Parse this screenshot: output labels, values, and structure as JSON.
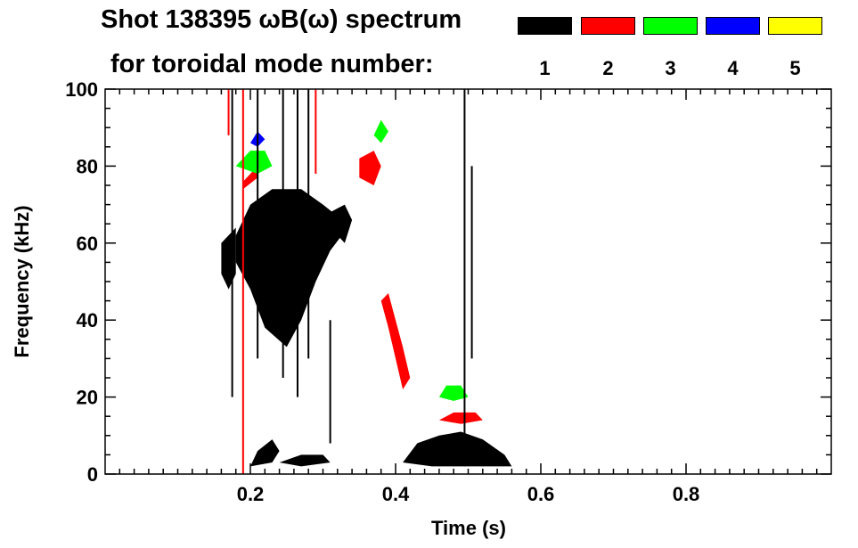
{
  "chart_data": {
    "type": "heatmap",
    "title_line1": "Shot 138395 ωB(ω) spectrum",
    "title_line2": "for toroidal mode number:",
    "xlabel": "Time (s)",
    "ylabel": "Frequency (kHz)",
    "xlim": [
      0.0,
      1.0
    ],
    "ylim": [
      0,
      100
    ],
    "xticks": [
      0.2,
      0.4,
      0.6,
      0.8
    ],
    "xtick_labels": [
      "0.2",
      "0.4",
      "0.6",
      "0.8"
    ],
    "yticks": [
      0,
      20,
      40,
      60,
      80,
      100
    ],
    "ytick_labels": [
      "0",
      "20",
      "40",
      "60",
      "80",
      "100"
    ],
    "legend": [
      {
        "mode": "1",
        "color": "#000000"
      },
      {
        "mode": "2",
        "color": "#ff0000"
      },
      {
        "mode": "3",
        "color": "#00ff00"
      },
      {
        "mode": "4",
        "color": "#0000ff"
      },
      {
        "mode": "5",
        "color": "#ffff00"
      }
    ],
    "legend_placement": "top-right",
    "regions": [
      {
        "mode": 1,
        "polygon": [
          [
            0.18,
            62
          ],
          [
            0.2,
            70
          ],
          [
            0.23,
            74
          ],
          [
            0.27,
            74
          ],
          [
            0.3,
            70
          ],
          [
            0.32,
            67
          ],
          [
            0.33,
            63
          ],
          [
            0.31,
            58
          ],
          [
            0.29,
            50
          ],
          [
            0.27,
            40
          ],
          [
            0.25,
            33
          ],
          [
            0.22,
            38
          ],
          [
            0.2,
            48
          ],
          [
            0.18,
            55
          ]
        ]
      },
      {
        "mode": 1,
        "polygon": [
          [
            0.16,
            60
          ],
          [
            0.18,
            64
          ],
          [
            0.18,
            52
          ],
          [
            0.17,
            48
          ],
          [
            0.16,
            52
          ]
        ]
      },
      {
        "mode": 1,
        "polygon": [
          [
            0.31,
            68
          ],
          [
            0.33,
            70
          ],
          [
            0.34,
            66
          ],
          [
            0.33,
            60
          ],
          [
            0.32,
            62
          ]
        ]
      },
      {
        "mode": 1,
        "polygon": [
          [
            0.41,
            3
          ],
          [
            0.43,
            8
          ],
          [
            0.46,
            10
          ],
          [
            0.49,
            11
          ],
          [
            0.52,
            9
          ],
          [
            0.55,
            5
          ],
          [
            0.56,
            2
          ],
          [
            0.5,
            2
          ],
          [
            0.45,
            2
          ]
        ]
      },
      {
        "mode": 1,
        "polygon": [
          [
            0.2,
            2
          ],
          [
            0.21,
            6
          ],
          [
            0.23,
            9
          ],
          [
            0.24,
            6
          ],
          [
            0.23,
            3
          ]
        ]
      },
      {
        "mode": 1,
        "polygon": [
          [
            0.24,
            3
          ],
          [
            0.27,
            5
          ],
          [
            0.3,
            5
          ],
          [
            0.31,
            3
          ],
          [
            0.27,
            2
          ]
        ]
      },
      {
        "mode": 2,
        "polygon": [
          [
            0.35,
            82
          ],
          [
            0.37,
            84
          ],
          [
            0.38,
            80
          ],
          [
            0.37,
            75
          ],
          [
            0.35,
            77
          ]
        ]
      },
      {
        "mode": 2,
        "polygon": [
          [
            0.19,
            76
          ],
          [
            0.21,
            80
          ],
          [
            0.21,
            77
          ],
          [
            0.19,
            74
          ]
        ]
      },
      {
        "mode": 2,
        "polygon": [
          [
            0.39,
            47
          ],
          [
            0.4,
            40
          ],
          [
            0.41,
            33
          ],
          [
            0.42,
            25
          ],
          [
            0.41,
            22
          ],
          [
            0.4,
            30
          ],
          [
            0.39,
            38
          ],
          [
            0.38,
            45
          ]
        ]
      },
      {
        "mode": 2,
        "polygon": [
          [
            0.46,
            14
          ],
          [
            0.48,
            16
          ],
          [
            0.51,
            16
          ],
          [
            0.52,
            14
          ],
          [
            0.49,
            13
          ]
        ]
      },
      {
        "mode": 3,
        "polygon": [
          [
            0.18,
            80
          ],
          [
            0.2,
            84
          ],
          [
            0.22,
            84
          ],
          [
            0.23,
            80
          ],
          [
            0.21,
            78
          ]
        ]
      },
      {
        "mode": 3,
        "polygon": [
          [
            0.46,
            20
          ],
          [
            0.47,
            23
          ],
          [
            0.49,
            23
          ],
          [
            0.5,
            20
          ],
          [
            0.48,
            19
          ]
        ]
      },
      {
        "mode": 3,
        "polygon": [
          [
            0.37,
            88
          ],
          [
            0.38,
            92
          ],
          [
            0.39,
            89
          ],
          [
            0.38,
            86
          ]
        ]
      },
      {
        "mode": 4,
        "polygon": [
          [
            0.2,
            86
          ],
          [
            0.21,
            89
          ],
          [
            0.22,
            87
          ],
          [
            0.21,
            85
          ]
        ]
      }
    ],
    "streaks": [
      {
        "mode": 1,
        "x": 0.175,
        "y": [
          20,
          100
        ]
      },
      {
        "mode": 1,
        "x": 0.21,
        "y": [
          30,
          100
        ]
      },
      {
        "mode": 1,
        "x": 0.245,
        "y": [
          25,
          100
        ]
      },
      {
        "mode": 1,
        "x": 0.265,
        "y": [
          20,
          100
        ]
      },
      {
        "mode": 1,
        "x": 0.28,
        "y": [
          30,
          100
        ]
      },
      {
        "mode": 1,
        "x": 0.31,
        "y": [
          8,
          40
        ]
      },
      {
        "mode": 1,
        "x": 0.495,
        "y": [
          2,
          100
        ]
      },
      {
        "mode": 1,
        "x": 0.505,
        "y": [
          30,
          80
        ]
      },
      {
        "mode": 2,
        "x": 0.19,
        "y": [
          0,
          100
        ]
      },
      {
        "mode": 2,
        "x": 0.29,
        "y": [
          78,
          100
        ]
      },
      {
        "mode": 2,
        "x": 0.17,
        "y": [
          88,
          100
        ]
      }
    ]
  }
}
